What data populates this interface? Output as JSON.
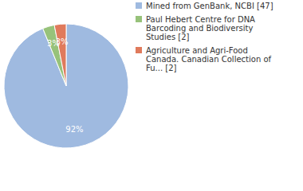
{
  "chart_data": {
    "type": "pie",
    "categories": [
      "Mined from GenBank, NCBI [47]",
      "Paul Hebert Centre for DNA Barcoding and Biodiversity Studies [2]",
      "Agriculture and Agri-Food Canada. Canadian Collection of Fu... [2]"
    ],
    "values": [
      92,
      3,
      3
    ],
    "value_labels": [
      "92%",
      "3%",
      "3%"
    ],
    "colors": [
      "#9fbae0",
      "#97c27a",
      "#e07a5c"
    ],
    "data_labels": true,
    "legend": "top-right"
  }
}
